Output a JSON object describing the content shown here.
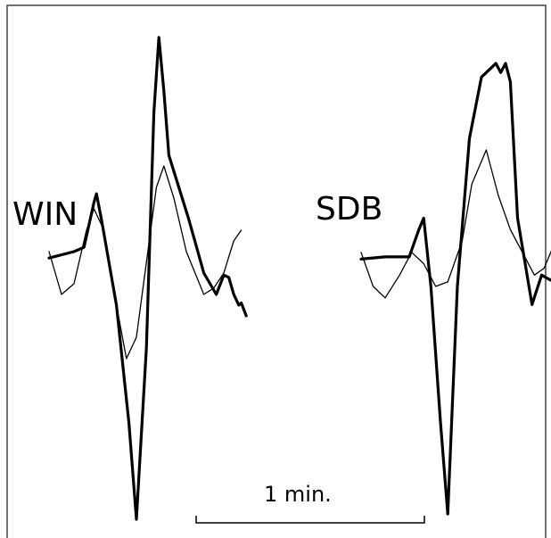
{
  "chart_data": {
    "type": "line",
    "title": "",
    "xlabel": "",
    "ylabel": "",
    "grid": false,
    "legend": "none",
    "colors": {
      "ink": "#000000",
      "background": "#ffffff",
      "frame": "#444444"
    },
    "scale_bar": {
      "label": "1 min.",
      "duration_min": 1
    },
    "panels": [
      {
        "station": "WIN",
        "series": [
          {
            "role": "thick",
            "x": [
              0.0,
              0.1,
              0.14,
              0.18,
              0.19,
              0.21,
              0.27,
              0.32,
              0.35,
              0.39,
              0.42,
              0.44,
              0.46,
              0.48,
              0.56,
              0.62,
              0.67,
              0.7,
              0.72,
              0.74,
              0.76,
              0.77,
              0.79
            ],
            "y": [
              -0.08,
              -0.05,
              -0.03,
              0.18,
              0.22,
              0.1,
              -0.3,
              -0.85,
              -1.3,
              -0.5,
              0.6,
              0.95,
              0.7,
              0.4,
              0.1,
              -0.15,
              -0.25,
              -0.16,
              -0.17,
              -0.25,
              -0.3,
              -0.29,
              -0.35
            ]
          },
          {
            "role": "thin",
            "x": [
              0.0,
              0.05,
              0.1,
              0.15,
              0.18,
              0.22,
              0.27,
              0.31,
              0.35,
              0.39,
              0.43,
              0.46,
              0.5,
              0.55,
              0.62,
              0.66,
              0.7,
              0.74,
              0.77
            ],
            "y": [
              -0.05,
              -0.25,
              -0.2,
              0.05,
              0.15,
              0.05,
              -0.3,
              -0.55,
              -0.45,
              -0.1,
              0.25,
              0.35,
              0.2,
              -0.05,
              -0.25,
              -0.22,
              -0.15,
              0.0,
              0.05
            ]
          }
        ]
      },
      {
        "station": "SDB",
        "series": [
          {
            "role": "thick",
            "x": [
              0.0,
              0.1,
              0.2,
              0.24,
              0.26,
              0.29,
              0.33,
              0.36,
              0.4,
              0.45,
              0.5,
              0.56,
              0.58,
              0.6,
              0.62,
              0.65,
              0.71,
              0.75,
              0.8
            ],
            "y": [
              -0.08,
              -0.07,
              -0.07,
              0.05,
              0.1,
              -0.2,
              -0.8,
              -1.2,
              -0.2,
              0.45,
              0.72,
              0.78,
              0.74,
              0.78,
              0.7,
              0.1,
              -0.28,
              -0.15,
              -0.18
            ]
          },
          {
            "role": "thin",
            "x": [
              0.0,
              0.05,
              0.1,
              0.16,
              0.21,
              0.26,
              0.31,
              0.36,
              0.42,
              0.46,
              0.52,
              0.57,
              0.62,
              0.67,
              0.72,
              0.76,
              0.8
            ],
            "y": [
              -0.05,
              -0.2,
              -0.25,
              -0.15,
              -0.05,
              -0.1,
              -0.2,
              -0.18,
              0.0,
              0.25,
              0.4,
              0.2,
              0.05,
              -0.05,
              -0.15,
              -0.12,
              -0.02
            ]
          }
        ]
      }
    ]
  }
}
